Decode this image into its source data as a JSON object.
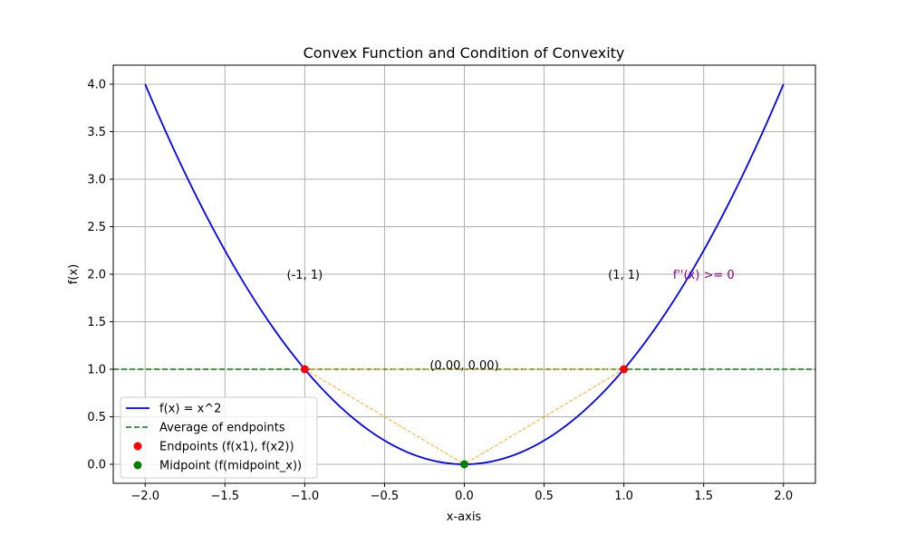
{
  "chart_data": {
    "type": "line",
    "title": "Convex Function and Condition of Convexity",
    "xlabel": "x-axis",
    "ylabel": "f(x)",
    "xlim": [
      -2.2,
      2.2
    ],
    "ylim": [
      -0.2,
      4.2
    ],
    "x_ticks": [
      -2.0,
      -1.5,
      -1.0,
      -0.5,
      0.0,
      0.5,
      1.0,
      1.5,
      2.0
    ],
    "x_tick_labels": [
      "−2.0",
      "−1.5",
      "−1.0",
      "−0.5",
      "0.0",
      "0.5",
      "1.0",
      "1.5",
      "2.0"
    ],
    "y_ticks": [
      0.0,
      0.5,
      1.0,
      1.5,
      2.0,
      2.5,
      3.0,
      3.5,
      4.0
    ],
    "y_tick_labels": [
      "0.0",
      "0.5",
      "1.0",
      "1.5",
      "2.0",
      "2.5",
      "3.0",
      "3.5",
      "4.0"
    ],
    "grid": true,
    "legend_position": "lower-left",
    "colors": {
      "curve": "#0000ff",
      "average": "#008000",
      "endpoints": "#ff0000",
      "midpoint": "#008000",
      "chord": "#ffa500",
      "annotation_purple": "#800080",
      "grid": "#b0b0b0"
    },
    "series": [
      {
        "name": "f(x) = x^2",
        "kind": "curve",
        "function": "x^2",
        "x_range": [
          -2,
          2
        ]
      },
      {
        "name": "Average of endpoints",
        "kind": "hline",
        "y": 1.0
      },
      {
        "name": "Endpoints (f(x1), f(x2))",
        "kind": "scatter",
        "points": [
          [
            -1,
            1
          ],
          [
            1,
            1
          ]
        ]
      },
      {
        "name": "Midpoint (f(midpoint_x))",
        "kind": "scatter",
        "points": [
          [
            0,
            0
          ]
        ]
      }
    ],
    "chords": [
      {
        "points": [
          [
            -1,
            1
          ],
          [
            0,
            0
          ]
        ]
      },
      {
        "points": [
          [
            1,
            1
          ],
          [
            0,
            0
          ]
        ]
      },
      {
        "points": [
          [
            -1,
            1
          ],
          [
            1,
            1
          ]
        ]
      }
    ],
    "annotations": [
      {
        "text": "(-1, 1)",
        "x": -1.0,
        "y": 2.0,
        "color": "#000000"
      },
      {
        "text": "(1, 1)",
        "x": 1.0,
        "y": 2.0,
        "color": "#000000"
      },
      {
        "text": "f''(x) >= 0",
        "x": 1.5,
        "y": 2.0,
        "color": "#800080"
      },
      {
        "text": "(0.00, 0.00)",
        "x": 0.0,
        "y": 1.05,
        "color": "#000000"
      }
    ]
  }
}
